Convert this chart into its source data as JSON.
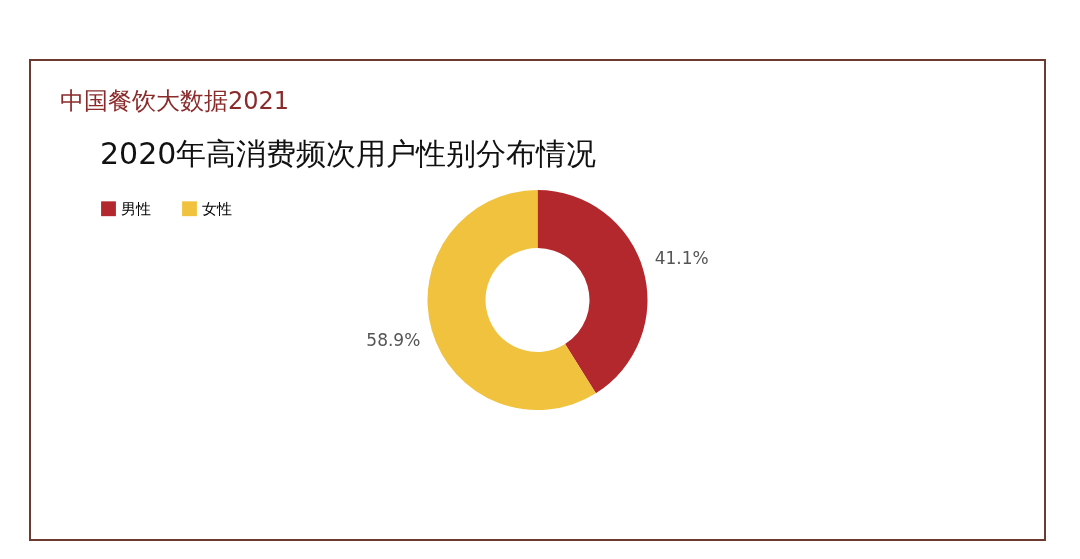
{
  "chart_data": {
    "type": "donut",
    "title": "中国餐饮大数据2021",
    "subtitle": "2020年高消费频次用户性别分布情况",
    "categories": [
      "男性",
      "女性"
    ],
    "values": [
      41.1,
      58.9
    ],
    "colors": [
      "#b3282d",
      "#f0c23e"
    ],
    "value_labels": [
      "41.1%",
      "58.9%"
    ],
    "legend": "top left"
  }
}
